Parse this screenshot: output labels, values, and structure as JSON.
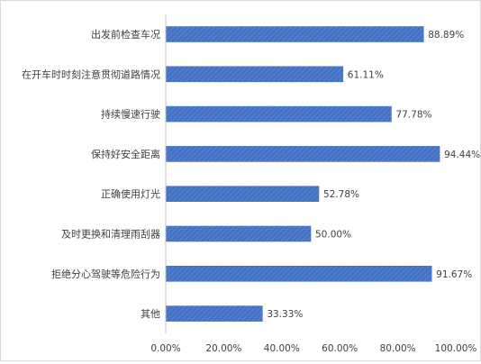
{
  "chart_data": {
    "type": "bar",
    "orientation": "horizontal",
    "categories": [
      "出发前检查车况",
      "在开车时时刻注意贯彻道路情况",
      "持续慢速行驶",
      "保持好安全距离",
      "正确使用灯光",
      "及时更换和清理雨刮器",
      "拒绝分心驾驶等危险行为",
      "其他"
    ],
    "values": [
      88.89,
      61.11,
      77.78,
      94.44,
      52.78,
      50.0,
      91.67,
      33.33
    ],
    "data_labels": [
      "88.89%",
      "61.11%",
      "77.78%",
      "94.44%",
      "52.78%",
      "50.00%",
      "91.67%",
      "33.33%"
    ],
    "x_ticks": [
      "0.00%",
      "20.00%",
      "40.00%",
      "60.00%",
      "80.00%",
      "100.00%"
    ],
    "xlim": [
      0,
      100
    ],
    "title": "",
    "xlabel": "",
    "ylabel": "",
    "grid": false,
    "legend": "none",
    "bar_color": "#4472c4",
    "bar_pattern": "light diagonal stripes"
  }
}
